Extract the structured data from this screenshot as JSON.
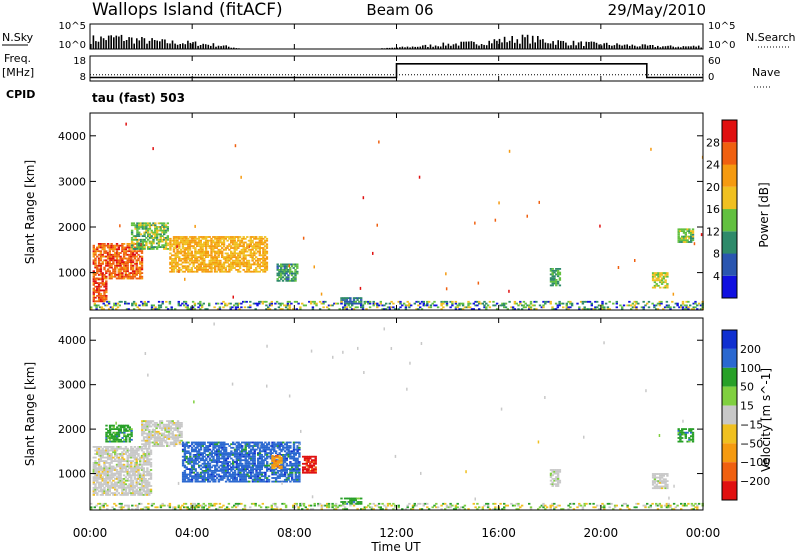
{
  "header": {
    "station": "Wallops Island (fitACF)",
    "beam": "Beam 06",
    "date": "29/May/2010"
  },
  "strip": {
    "nsky_label": "N.Sky",
    "nsearch_label": "N.Search",
    "left_ticks": [
      "10^5",
      "10^0"
    ],
    "right_ticks": [
      "10^5",
      "10^0"
    ],
    "freq_label": "Freq.",
    "freq_unit": "[MHz]",
    "nave_label": "Nave",
    "freq_ticks": [
      "18",
      "8"
    ],
    "nave_ticks": [
      "60",
      "0"
    ],
    "cpid_label": "CPID",
    "cpid_text": "tau (fast) 503"
  },
  "xaxis": {
    "label": "Time UT",
    "ticks": [
      "00:00",
      "04:00",
      "08:00",
      "12:00",
      "16:00",
      "20:00",
      "00:00"
    ]
  },
  "chart_data": [
    {
      "type": "line",
      "title": "N.Sky / N.Search",
      "x_unit": "hours UT",
      "xlim": [
        0,
        24
      ],
      "series": [
        {
          "name": "N.Sky",
          "x": [
            0,
            1,
            2,
            3,
            4,
            5,
            6,
            7,
            8,
            9,
            10,
            11,
            12,
            13,
            14,
            15,
            16,
            17,
            18,
            19,
            20,
            21,
            22,
            23,
            24
          ],
          "y": [
            2.0,
            2.4,
            1.8,
            1.4,
            1.2,
            0.8,
            0,
            0,
            0,
            0,
            0,
            0,
            0.3,
            0.6,
            1.0,
            1.2,
            1.8,
            2.2,
            1.6,
            1.2,
            1.0,
            0.8,
            0.6,
            0.5,
            0.6
          ]
        }
      ],
      "ylim": [
        0,
        5
      ]
    },
    {
      "type": "line",
      "title": "Freq. / Nave",
      "xlim": [
        0,
        24
      ],
      "series": [
        {
          "name": "Freq.",
          "x": [
            0,
            12,
            12,
            21.8,
            21.8,
            24
          ],
          "y": [
            9.4,
            9.4,
            14.9,
            14.9,
            9.4,
            9.4
          ]
        },
        {
          "name": "Nave",
          "x": [
            0,
            24
          ],
          "y": [
            8,
            8
          ]
        }
      ],
      "freq_ylim": [
        8,
        18
      ],
      "nave_ylim": [
        0,
        60
      ]
    },
    {
      "type": "heatmap",
      "title": "Power",
      "xlabel": "Time UT",
      "ylabel": "Slant Range [km]",
      "xlim": [
        0,
        24
      ],
      "ylim": [
        180,
        4500
      ],
      "yticks": [
        1000,
        2000,
        3000,
        4000
      ],
      "colorbar": {
        "label": "Power [dB]",
        "ticks": [
          4,
          8,
          12,
          16,
          20,
          24,
          28
        ],
        "range": [
          0,
          32
        ],
        "colors": [
          "#1010e0",
          "#2a56b0",
          "#2e8a6a",
          "#62c040",
          "#f0c020",
          "#f59a10",
          "#f06010",
          "#e01010"
        ]
      },
      "regions": [
        {
          "t0": 0.1,
          "t1": 2.0,
          "r0": 850,
          "r1": 1650,
          "value": 26
        },
        {
          "t0": 0.1,
          "t1": 0.6,
          "r0": 350,
          "r1": 850,
          "value": 27
        },
        {
          "t0": 1.6,
          "t1": 3.0,
          "r0": 1500,
          "r1": 2100,
          "value": 14
        },
        {
          "t0": 3.1,
          "t1": 6.9,
          "r0": 1000,
          "r1": 1800,
          "value": 20
        },
        {
          "t0": 7.3,
          "t1": 8.1,
          "r0": 800,
          "r1": 1200,
          "value": 11
        },
        {
          "t0": 9.8,
          "t1": 10.6,
          "r0": 300,
          "r1": 450,
          "value": 8
        },
        {
          "t0": 18.0,
          "t1": 18.4,
          "r0": 700,
          "r1": 1100,
          "value": 12
        },
        {
          "t0": 22.0,
          "t1": 22.6,
          "r0": 650,
          "r1": 1000,
          "value": 16
        },
        {
          "t0": 23.0,
          "t1": 23.6,
          "r0": 1650,
          "r1": 1950,
          "value": 14
        },
        {
          "t0": 0.0,
          "t1": 24.0,
          "r0": 180,
          "r1": 350,
          "value": 10
        }
      ]
    },
    {
      "type": "heatmap",
      "title": "Velocity",
      "xlabel": "Time UT",
      "ylabel": "Slant Range [km]",
      "xlim": [
        0,
        24
      ],
      "ylim": [
        180,
        4500
      ],
      "yticks": [
        1000,
        2000,
        3000,
        4000
      ],
      "colorbar": {
        "label": "Velocity [m s^-1]",
        "ticks": [
          "200",
          "100",
          "50",
          "15",
          "-15",
          "-50",
          "-100",
          "-200"
        ],
        "colors": [
          "#1030d0",
          "#2a68d0",
          "#28a028",
          "#80d040",
          "#c8c8c8",
          "#f0c020",
          "#f59a10",
          "#f06010",
          "#e01010"
        ]
      },
      "regions": [
        {
          "t0": 0.1,
          "t1": 2.4,
          "r0": 500,
          "r1": 1600,
          "value": "0"
        },
        {
          "t0": 0.6,
          "t1": 1.6,
          "r0": 1700,
          "r1": 2100,
          "value": "35"
        },
        {
          "t0": 2.0,
          "t1": 3.6,
          "r0": 1600,
          "r1": 2200,
          "value": "0"
        },
        {
          "t0": 3.6,
          "t1": 8.2,
          "r0": 800,
          "r1": 1700,
          "value": "150"
        },
        {
          "t0": 7.1,
          "t1": 7.5,
          "r0": 1100,
          "r1": 1400,
          "value": "-60"
        },
        {
          "t0": 8.3,
          "t1": 8.8,
          "r0": 1000,
          "r1": 1400,
          "value": "-160"
        },
        {
          "t0": 9.8,
          "t1": 10.6,
          "r0": 300,
          "r1": 450,
          "value": "35"
        },
        {
          "t0": 18.0,
          "t1": 18.4,
          "r0": 700,
          "r1": 1100,
          "value": "0"
        },
        {
          "t0": 22.0,
          "t1": 22.6,
          "r0": 650,
          "r1": 1000,
          "value": "0"
        },
        {
          "t0": 23.0,
          "t1": 23.6,
          "r0": 1700,
          "r1": 2000,
          "value": "35"
        },
        {
          "t0": 0.0,
          "t1": 24.0,
          "r0": 180,
          "r1": 330,
          "value": "35"
        }
      ]
    }
  ]
}
